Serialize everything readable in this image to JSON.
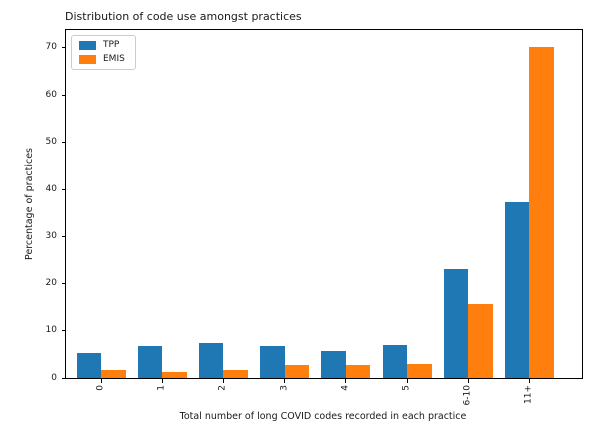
{
  "chart_data": {
    "type": "bar",
    "title": "Distribution of code use amongst practices",
    "xlabel": "Total number of long COVID codes recorded in each practice",
    "ylabel": "Percentage of practices",
    "categories": [
      "0",
      "1",
      "2",
      "3",
      "4",
      "5",
      "6-10",
      "11+"
    ],
    "series": [
      {
        "name": "TPP",
        "color": "#1f77b4",
        "values": [
          5.2,
          6.7,
          7.4,
          6.7,
          5.8,
          7.0,
          23.2,
          37.4
        ]
      },
      {
        "name": "EMIS",
        "color": "#ff7f0e",
        "values": [
          1.8,
          1.2,
          1.8,
          2.7,
          2.7,
          3.0,
          15.7,
          70.3
        ]
      }
    ],
    "yticks": [
      0,
      10,
      20,
      30,
      40,
      50,
      60,
      70
    ],
    "ylim": [
      0,
      73.8
    ],
    "grid": false,
    "legend_position": "upper left",
    "x_tick_rotation": 90
  }
}
